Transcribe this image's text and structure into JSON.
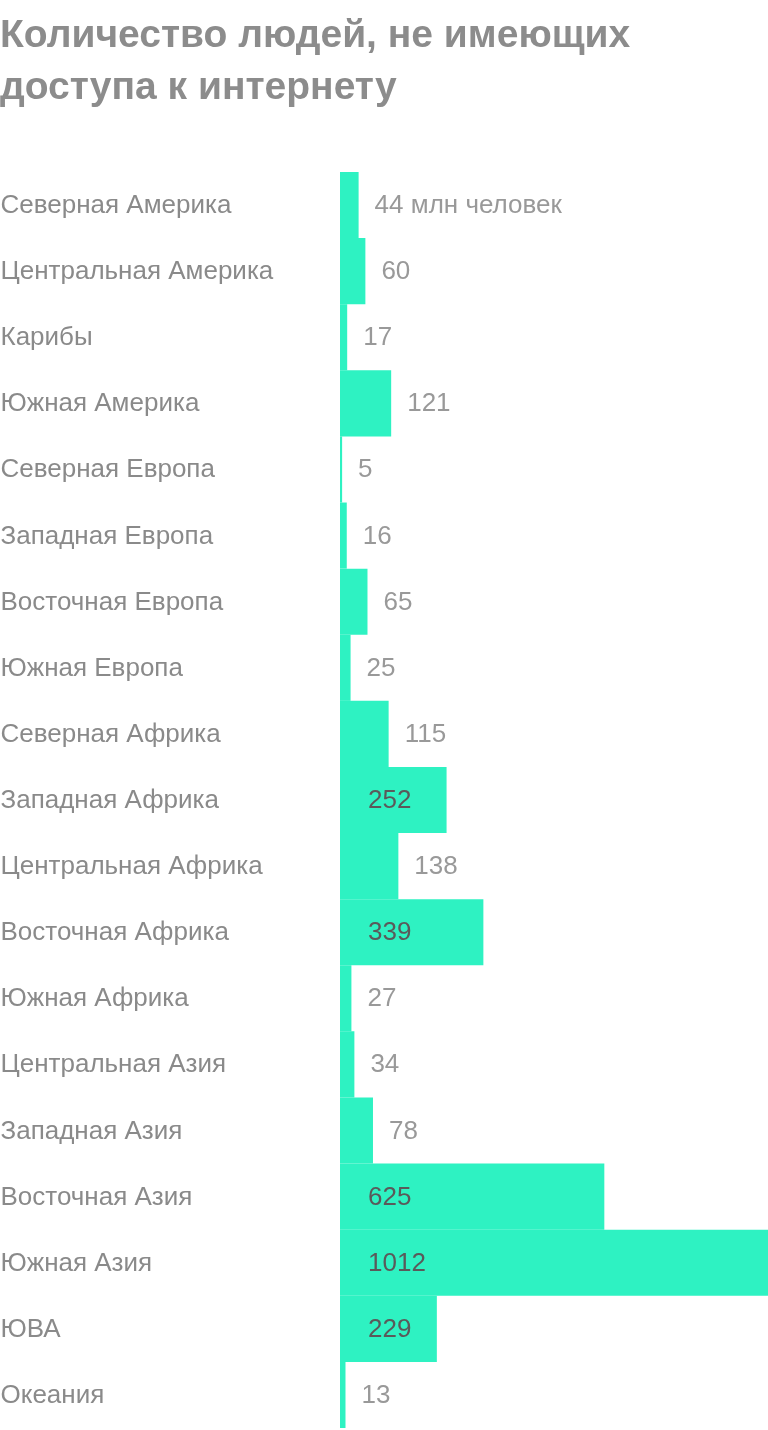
{
  "chart_data": {
    "type": "bar",
    "orientation": "horizontal",
    "title": "Количество людей, не имеющих доступа к интернету",
    "categories": [
      "Северная Америка",
      "Центральная Америка",
      "Карибы",
      "Южная Америка",
      "Северная Европа",
      "Западная Европа",
      "Восточная Европа",
      "Южная Европа",
      "Северная Африка",
      "Западная Африка",
      "Центральная Африка",
      "Восточная Африка",
      "Южная Африка",
      "Центральная Азия",
      "Западная Азия",
      "Восточная Азия",
      "Южная Азия",
      "ЮВА",
      "Океания"
    ],
    "values": [
      44,
      60,
      17,
      121,
      5,
      16,
      65,
      25,
      115,
      252,
      138,
      339,
      27,
      34,
      78,
      625,
      1012,
      229,
      13
    ],
    "value_labels": [
      "44 млн человек",
      "60",
      "17",
      "121",
      "5",
      "16",
      "65",
      "25",
      "115",
      "252",
      "138",
      "339",
      "27",
      "34",
      "78",
      "625",
      "1012",
      "229",
      "13"
    ],
    "color": "#2ef2c2"
  }
}
